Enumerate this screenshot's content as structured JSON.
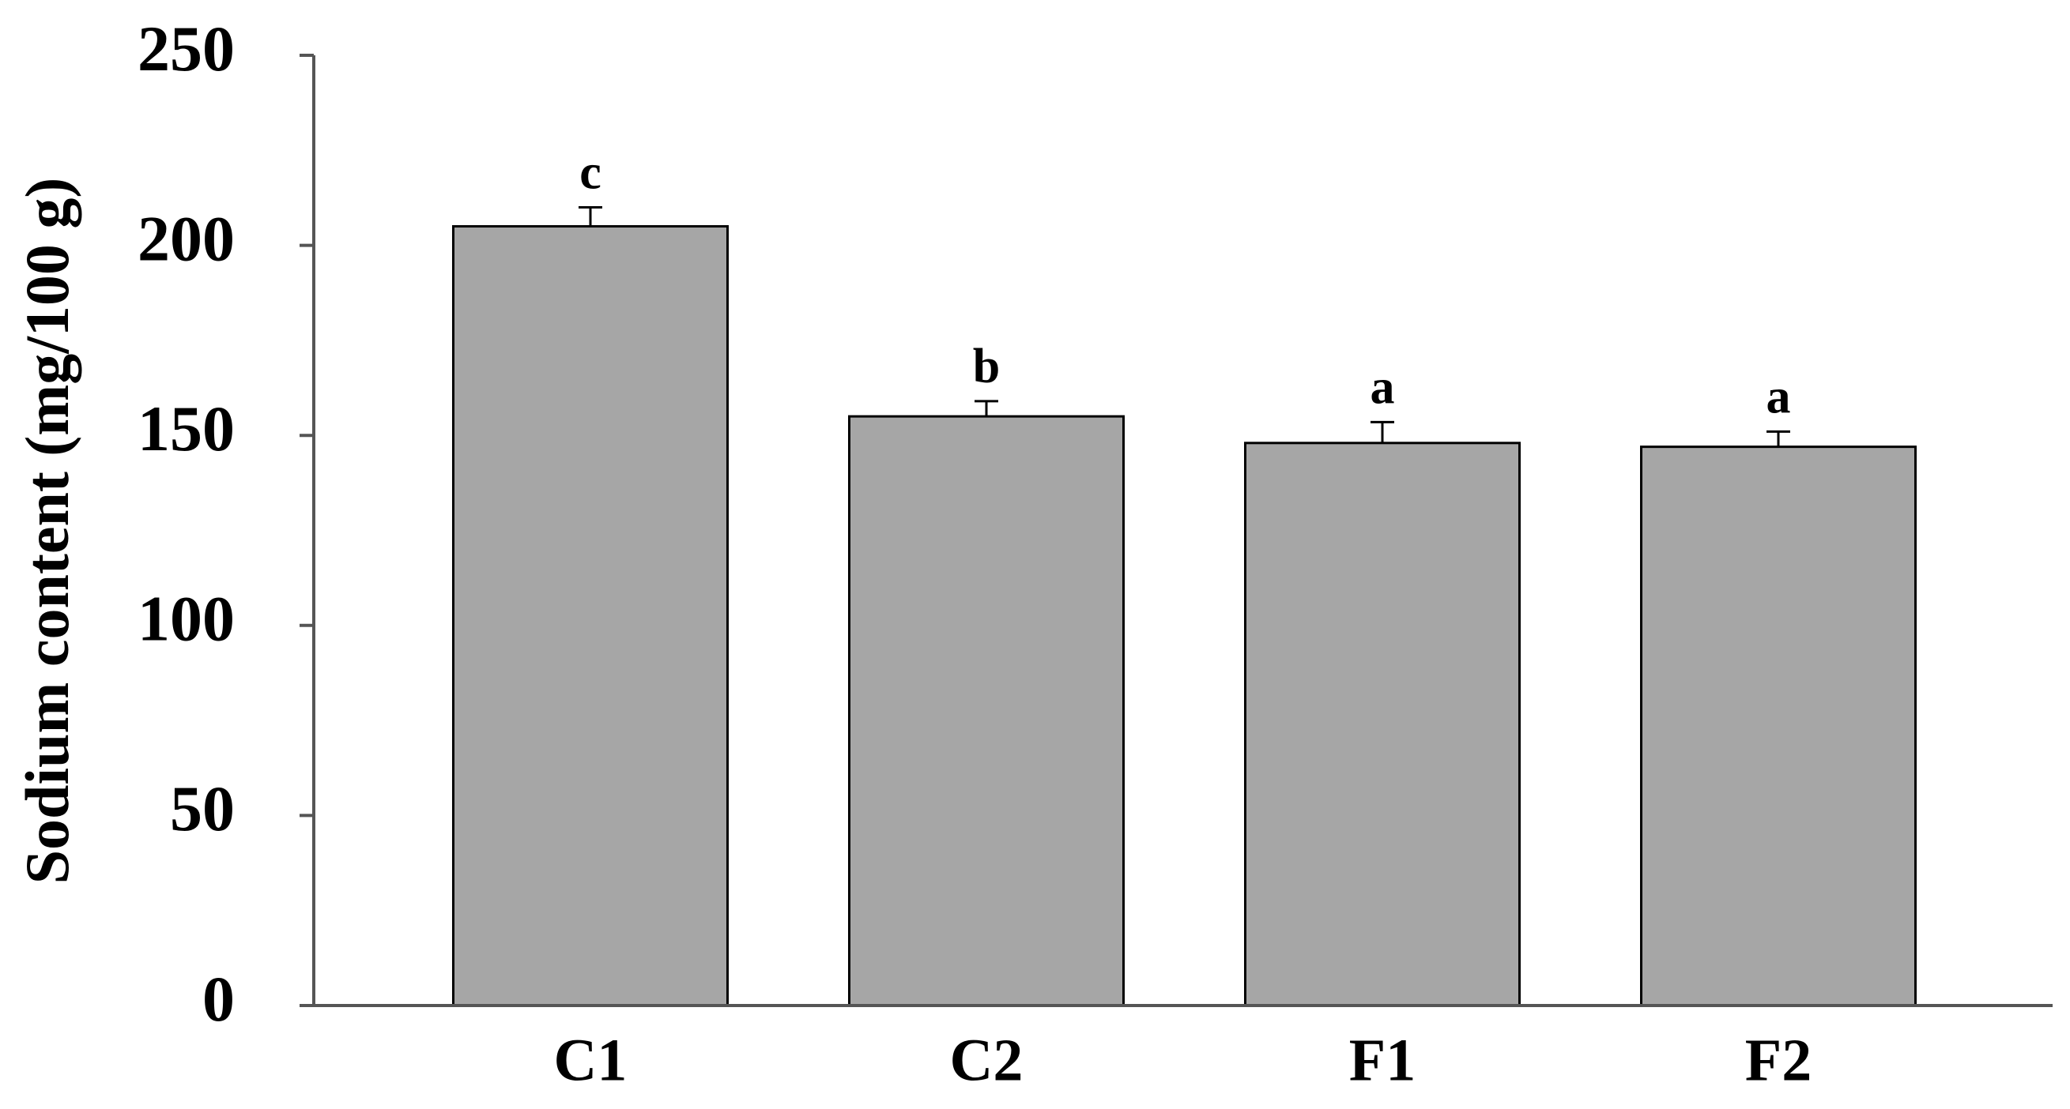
{
  "chart_data": {
    "type": "bar",
    "y_label": "Sodium content (mg/100 g)",
    "categories": [
      "C1",
      "C2",
      "F1",
      "F2"
    ],
    "values": [
      205,
      155,
      148,
      147
    ],
    "errors": [
      5,
      4,
      5.5,
      4
    ],
    "annotations": [
      "c",
      "b",
      "a",
      "a"
    ],
    "color": "#a6a6a6",
    "ylim": [
      0,
      250
    ],
    "yticks": [
      0,
      50,
      100,
      150,
      200,
      250
    ]
  }
}
